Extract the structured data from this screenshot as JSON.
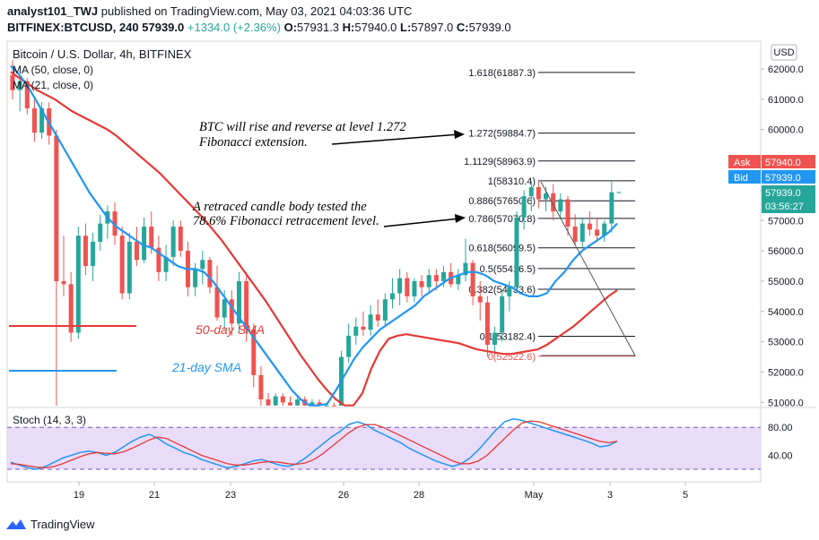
{
  "header": {
    "publisher": "analyst101_TWJ",
    "published_on": "published on TradingView.com, May 03, 2021 04:03:36 UTC",
    "symbol": "BITFINEX:BTCUSD, 240",
    "last": "57939.0",
    "change": "+1334.0 (+2.36%)",
    "o_label": "O:",
    "o": "57931.3",
    "h_label": "H:",
    "h": "57940.0",
    "l_label": "L:",
    "l": "57897.0",
    "c_label": "C:",
    "c": "57939.0"
  },
  "legend": {
    "title": "Bitcoin / U.S. Dollar, 4h, BITFINEX",
    "ma1": "MA (50, close, 0)",
    "ma2": "MA (21, close, 0)"
  },
  "currency_button": "USD",
  "price_axis": {
    "ticks": [
      "62000.0",
      "61000.0",
      "60000.0",
      "59000.0",
      "58000.0",
      "57000.0",
      "56000.0",
      "55000.0",
      "54000.0",
      "53000.0",
      "52000.0",
      "51000.0"
    ],
    "ask_label": "Ask",
    "ask_value": "57940.0",
    "bid_label": "Bid",
    "bid_value": "57939.0",
    "last_value": "57939.0",
    "countdown": "03:56:27"
  },
  "stoch_axis": {
    "ticks": [
      "80.00",
      "40.00"
    ]
  },
  "time_axis": {
    "ticks": [
      "19",
      "21",
      "23",
      "26",
      "28",
      "May",
      "3",
      "5"
    ]
  },
  "stoch_label": "Stoch (14, 3, 3)",
  "fib_levels": [
    {
      "label": "1.618(61887.3)",
      "value": 61887.3
    },
    {
      "label": "1.272(59884.7)",
      "value": 59884.7
    },
    {
      "label": "1.1129(58963.9)",
      "value": 58963.9
    },
    {
      "label": "1(58310.4)",
      "value": 58310.4
    },
    {
      "label": "0.886(57650.6)",
      "value": 57650.6
    },
    {
      "label": "0.786(57070.8)",
      "value": 57070.8
    },
    {
      "label": "0.618(56099.5)",
      "value": 56099.5
    },
    {
      "label": "0.5(55416.5)",
      "value": 55416.5
    },
    {
      "label": "0.382(54733.6)",
      "value": 54733.6
    },
    {
      "label": "0.1(53182.4)",
      "value": 53182.4
    },
    {
      "label": "0(52522.6)",
      "value": 52522.6
    }
  ],
  "annotations": {
    "note1_line1": "BTC will rise and reverse at level  1.272",
    "note1_line2": "Fibonacci extension.",
    "note2_line1": "A retraced candle body tested the",
    "note2_line2": "78.6% Fibonacci retracement level.",
    "sma50": "50-day SMA",
    "sma21": "21-day SMA"
  },
  "footer": {
    "brand": "TradingView"
  },
  "colors": {
    "up": "#26a69a",
    "down": "#ef5350",
    "sma50": "#e53935",
    "sma21": "#2196f3",
    "stoch_k": "#2196f3",
    "stoch_d": "#e53935",
    "stoch_bg": "#e1d0f7",
    "ask": "#ef5350",
    "bid": "#2196f3"
  },
  "chart_data": {
    "type": "candlestick",
    "symbol": "BITFINEX:BTCUSD",
    "interval": "4h",
    "ylim": [
      50800,
      62500
    ],
    "x_ticks": [
      "19",
      "21",
      "23",
      "26",
      "28",
      "May",
      "3",
      "5"
    ],
    "candles": [
      {
        "o": 61800,
        "h": 62300,
        "l": 61000,
        "c": 61300
      },
      {
        "o": 61300,
        "h": 61800,
        "l": 60600,
        "c": 61600
      },
      {
        "o": 61600,
        "h": 61700,
        "l": 60500,
        "c": 60700
      },
      {
        "o": 60700,
        "h": 61000,
        "l": 59600,
        "c": 59900
      },
      {
        "o": 59900,
        "h": 60900,
        "l": 59700,
        "c": 60700
      },
      {
        "o": 60700,
        "h": 60900,
        "l": 59500,
        "c": 59800
      },
      {
        "o": 59800,
        "h": 60000,
        "l": 50800,
        "c": 55000
      },
      {
        "o": 55000,
        "h": 56500,
        "l": 54500,
        "c": 54900
      },
      {
        "o": 54900,
        "h": 55300,
        "l": 53000,
        "c": 53300
      },
      {
        "o": 53300,
        "h": 56800,
        "l": 53100,
        "c": 56500
      },
      {
        "o": 56500,
        "h": 56900,
        "l": 55200,
        "c": 55500
      },
      {
        "o": 55500,
        "h": 56600,
        "l": 55000,
        "c": 56300
      },
      {
        "o": 56300,
        "h": 57200,
        "l": 56000,
        "c": 56900
      },
      {
        "o": 56900,
        "h": 57500,
        "l": 56400,
        "c": 57300
      },
      {
        "o": 57300,
        "h": 57600,
        "l": 56200,
        "c": 56500
      },
      {
        "o": 56500,
        "h": 56800,
        "l": 54400,
        "c": 54600
      },
      {
        "o": 54600,
        "h": 56600,
        "l": 54400,
        "c": 56300
      },
      {
        "o": 56300,
        "h": 56800,
        "l": 55500,
        "c": 55700
      },
      {
        "o": 55700,
        "h": 57100,
        "l": 55600,
        "c": 56800
      },
      {
        "o": 56800,
        "h": 57300,
        "l": 55900,
        "c": 56100
      },
      {
        "o": 56100,
        "h": 56500,
        "l": 55000,
        "c": 55300
      },
      {
        "o": 55300,
        "h": 56200,
        "l": 55000,
        "c": 55800
      },
      {
        "o": 55800,
        "h": 57000,
        "l": 55500,
        "c": 56800
      },
      {
        "o": 56800,
        "h": 57000,
        "l": 55800,
        "c": 56000
      },
      {
        "o": 56000,
        "h": 56300,
        "l": 54500,
        "c": 54800
      },
      {
        "o": 54800,
        "h": 55600,
        "l": 54500,
        "c": 55400
      },
      {
        "o": 55400,
        "h": 56000,
        "l": 54900,
        "c": 55700
      },
      {
        "o": 55700,
        "h": 55800,
        "l": 54600,
        "c": 54800
      },
      {
        "o": 54800,
        "h": 55500,
        "l": 53700,
        "c": 53800
      },
      {
        "o": 53800,
        "h": 54700,
        "l": 53400,
        "c": 54400
      },
      {
        "o": 54400,
        "h": 54700,
        "l": 53200,
        "c": 53600
      },
      {
        "o": 53600,
        "h": 55300,
        "l": 53300,
        "c": 55000
      },
      {
        "o": 55000,
        "h": 55300,
        "l": 53000,
        "c": 53400
      },
      {
        "o": 53400,
        "h": 53600,
        "l": 51500,
        "c": 51900
      },
      {
        "o": 51900,
        "h": 52200,
        "l": 50800,
        "c": 51100
      },
      {
        "o": 51100,
        "h": 51300,
        "l": 50800,
        "c": 50900
      },
      {
        "o": 50900,
        "h": 51300,
        "l": 50800,
        "c": 51200
      },
      {
        "o": 51200,
        "h": 51300,
        "l": 50800,
        "c": 51000
      },
      {
        "o": 51000,
        "h": 51200,
        "l": 50800,
        "c": 50900
      },
      {
        "o": 50900,
        "h": 51200,
        "l": 50800,
        "c": 51100
      },
      {
        "o": 51100,
        "h": 51200,
        "l": 50800,
        "c": 50900
      },
      {
        "o": 50900,
        "h": 51100,
        "l": 50800,
        "c": 51000
      },
      {
        "o": 51000,
        "h": 51100,
        "l": 50800,
        "c": 50900
      },
      {
        "o": 50900,
        "h": 51000,
        "l": 50800,
        "c": 50900
      },
      {
        "o": 50900,
        "h": 51000,
        "l": 50800,
        "c": 50850
      },
      {
        "o": 50850,
        "h": 52700,
        "l": 50800,
        "c": 52500
      },
      {
        "o": 52500,
        "h": 53600,
        "l": 52300,
        "c": 53200
      },
      {
        "o": 53200,
        "h": 53800,
        "l": 52900,
        "c": 53500
      },
      {
        "o": 53500,
        "h": 54000,
        "l": 53200,
        "c": 53400
      },
      {
        "o": 53400,
        "h": 54200,
        "l": 53200,
        "c": 53900
      },
      {
        "o": 53900,
        "h": 54400,
        "l": 53500,
        "c": 53700
      },
      {
        "o": 53700,
        "h": 54600,
        "l": 53500,
        "c": 54400
      },
      {
        "o": 54400,
        "h": 55100,
        "l": 54100,
        "c": 54600
      },
      {
        "o": 54600,
        "h": 55400,
        "l": 54200,
        "c": 55100
      },
      {
        "o": 55100,
        "h": 55300,
        "l": 54300,
        "c": 54500
      },
      {
        "o": 54500,
        "h": 55100,
        "l": 54300,
        "c": 55000
      },
      {
        "o": 55000,
        "h": 55200,
        "l": 54500,
        "c": 54800
      },
      {
        "o": 54800,
        "h": 55400,
        "l": 54600,
        "c": 55200
      },
      {
        "o": 55200,
        "h": 55400,
        "l": 54700,
        "c": 55000
      },
      {
        "o": 55000,
        "h": 55500,
        "l": 54800,
        "c": 55300
      },
      {
        "o": 55300,
        "h": 55600,
        "l": 54800,
        "c": 54900
      },
      {
        "o": 54900,
        "h": 55400,
        "l": 54700,
        "c": 55200
      },
      {
        "o": 55200,
        "h": 56400,
        "l": 55000,
        "c": 55600
      },
      {
        "o": 55600,
        "h": 55700,
        "l": 54200,
        "c": 54500
      },
      {
        "o": 54500,
        "h": 55000,
        "l": 53700,
        "c": 54300
      },
      {
        "o": 54300,
        "h": 54500,
        "l": 52500,
        "c": 52900
      },
      {
        "o": 52900,
        "h": 53500,
        "l": 52600,
        "c": 53300
      },
      {
        "o": 53300,
        "h": 54700,
        "l": 53000,
        "c": 54500
      },
      {
        "o": 54500,
        "h": 55000,
        "l": 54000,
        "c": 54800
      },
      {
        "o": 54800,
        "h": 57300,
        "l": 54600,
        "c": 57100
      },
      {
        "o": 57100,
        "h": 58000,
        "l": 56700,
        "c": 57800
      },
      {
        "o": 57800,
        "h": 58300,
        "l": 57300,
        "c": 58100
      },
      {
        "o": 58100,
        "h": 58300,
        "l": 57400,
        "c": 57700
      },
      {
        "o": 57700,
        "h": 58100,
        "l": 57300,
        "c": 57900
      },
      {
        "o": 57900,
        "h": 58200,
        "l": 57000,
        "c": 57300
      },
      {
        "o": 57300,
        "h": 57900,
        "l": 57100,
        "c": 57700
      },
      {
        "o": 57700,
        "h": 57800,
        "l": 56500,
        "c": 56800
      },
      {
        "o": 56800,
        "h": 57200,
        "l": 56200,
        "c": 56300
      },
      {
        "o": 56300,
        "h": 57100,
        "l": 56100,
        "c": 56900
      },
      {
        "o": 56900,
        "h": 57300,
        "l": 56500,
        "c": 56700
      },
      {
        "o": 56700,
        "h": 57100,
        "l": 56300,
        "c": 56500
      },
      {
        "o": 56500,
        "h": 57000,
        "l": 56300,
        "c": 56900
      },
      {
        "o": 56900,
        "h": 58300,
        "l": 56600,
        "c": 57930
      },
      {
        "o": 57931.3,
        "h": 57940,
        "l": 57897,
        "c": 57939
      }
    ],
    "sma50": [
      61900,
      61700,
      61500,
      61300,
      61150,
      61000,
      60800,
      60600,
      60450,
      60300,
      60150,
      60000,
      59800,
      59550,
      59300,
      59050,
      58800,
      58550,
      58250,
      57950,
      57650,
      57350,
      57050,
      56700,
      56350,
      55950,
      55550,
      55150,
      54750,
      54350,
      53900,
      53450,
      53000,
      52550,
      52150,
      51750,
      51400,
      51100,
      50900,
      50900,
      51300,
      52100,
      52700,
      53100,
      53200,
      53250,
      53200,
      53150,
      53100,
      53050,
      53000,
      52950,
      52850,
      52750,
      52700,
      52650,
      52600,
      52600,
      52650,
      52700,
      52750,
      52900,
      53100,
      53300,
      53500,
      53750,
      54000,
      54250,
      54500,
      54700
    ],
    "sma21": [
      62100,
      61800,
      61400,
      60900,
      60400,
      59900,
      59400,
      58900,
      58400,
      57900,
      57500,
      57100,
      56800,
      56600,
      56400,
      56200,
      56100,
      55900,
      55700,
      55500,
      55400,
      55400,
      55300,
      55000,
      54600,
      54200,
      53800,
      53400,
      53000,
      52600,
      52200,
      51800,
      51400,
      51100,
      50900,
      50900,
      50950,
      51400,
      51900,
      52400,
      52800,
      53100,
      53400,
      53600,
      53800,
      54000,
      54200,
      54500,
      54700,
      54900,
      55100,
      55200,
      55300,
      55300,
      55200,
      55000,
      54900,
      54800,
      54600,
      54500,
      54500,
      54600,
      55000,
      55300,
      55700,
      56000,
      56200,
      56400,
      56600,
      56900
    ],
    "stoch_k": [
      30,
      26,
      22,
      20,
      24,
      30,
      36,
      40,
      44,
      46,
      44,
      40,
      44,
      52,
      60,
      66,
      70,
      64,
      56,
      50,
      44,
      40,
      34,
      30,
      26,
      22,
      24,
      28,
      32,
      34,
      30,
      26,
      24,
      28,
      36,
      46,
      56,
      66,
      74,
      84,
      88,
      84,
      76,
      70,
      64,
      58,
      50,
      44,
      38,
      32,
      28,
      24,
      28,
      36,
      48,
      62,
      76,
      88,
      92,
      90,
      86,
      82,
      78,
      74,
      70,
      66,
      62,
      58,
      52,
      54,
      60
    ],
    "stoch_d": [
      28,
      27,
      25,
      23,
      22,
      24,
      28,
      33,
      38,
      42,
      44,
      43,
      42,
      45,
      50,
      56,
      62,
      66,
      64,
      58,
      52,
      46,
      40,
      36,
      32,
      28,
      26,
      26,
      28,
      30,
      31,
      30,
      28,
      27,
      29,
      34,
      42,
      52,
      62,
      72,
      80,
      84,
      84,
      80,
      74,
      68,
      62,
      56,
      50,
      44,
      38,
      32,
      28,
      28,
      32,
      40,
      52,
      64,
      76,
      86,
      89,
      88,
      84,
      80,
      76,
      72,
      68,
      64,
      60,
      58,
      60
    ]
  }
}
